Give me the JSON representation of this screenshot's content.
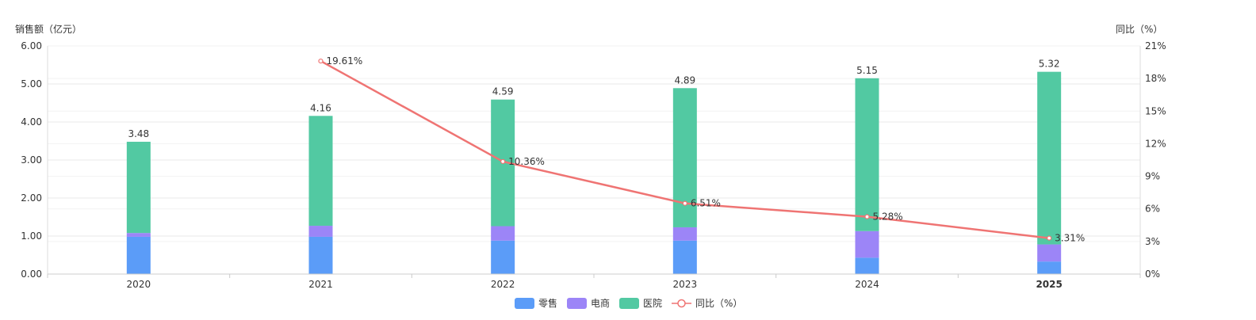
{
  "chart_data": {
    "type": "bar",
    "stacked": true,
    "categories": [
      "2020",
      "2021",
      "2022",
      "2023",
      "2024",
      "2025"
    ],
    "highlight_category": "2025",
    "left_axis": {
      "label": "销售额（亿元）",
      "ylim": [
        0,
        6
      ],
      "ticks": [
        "0.00",
        "1.00",
        "2.00",
        "3.00",
        "4.00",
        "5.00",
        "6.00"
      ]
    },
    "right_axis": {
      "label": "同比（%）",
      "ylim": [
        0,
        21
      ],
      "ticks": [
        "0%",
        "3%",
        "6%",
        "9%",
        "12%",
        "15%",
        "18%",
        "21%"
      ]
    },
    "series": [
      {
        "name": "零售",
        "type": "bar",
        "color": "#5b9cf8",
        "values": [
          0.98,
          0.98,
          0.88,
          0.88,
          0.43,
          0.33
        ]
      },
      {
        "name": "电商",
        "type": "bar",
        "color": "#9c85f7",
        "values": [
          0.1,
          0.29,
          0.38,
          0.35,
          0.7,
          0.45
        ]
      },
      {
        "name": "医院",
        "type": "bar",
        "color": "#52c9a2",
        "values": [
          2.4,
          2.89,
          3.33,
          3.66,
          4.02,
          4.54
        ]
      },
      {
        "name": "同比（%）",
        "type": "line",
        "axis": "right",
        "color": "#ef7473",
        "values": [
          null,
          19.61,
          10.36,
          6.51,
          5.28,
          3.31
        ]
      }
    ],
    "bar_total_labels": [
      "3.48",
      "4.16",
      "4.59",
      "4.89",
      "5.15",
      "5.32"
    ],
    "line_labels": [
      "",
      "19.61%",
      "10.36%",
      "6.51%",
      "5.28%",
      "3.31%"
    ],
    "legend_position": "bottom-center",
    "grid": true
  }
}
